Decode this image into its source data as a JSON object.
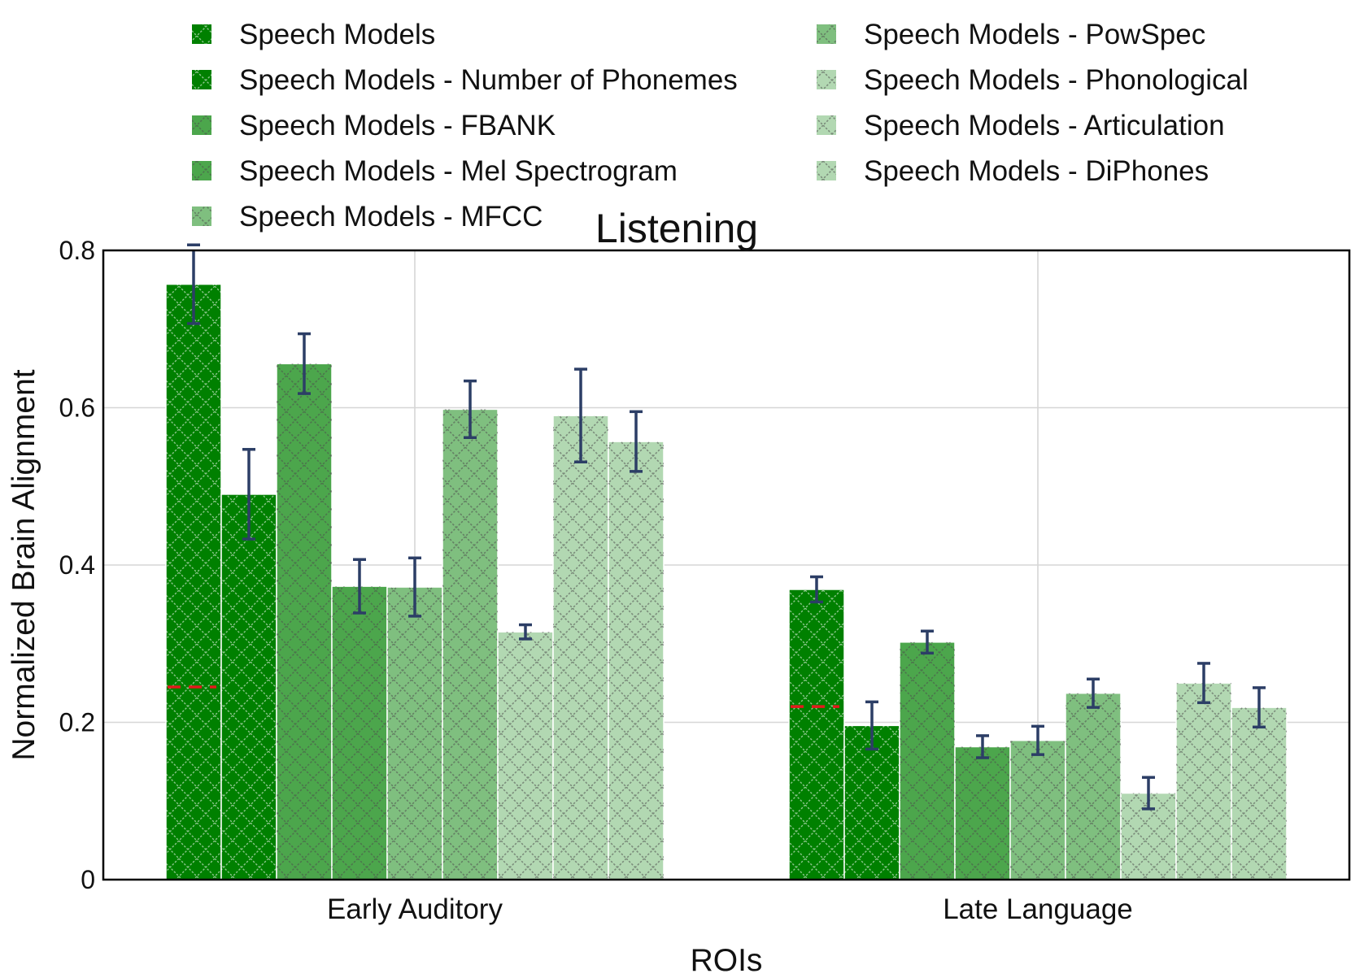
{
  "chart_data": {
    "type": "bar",
    "title": "Listening",
    "xlabel": "ROIs",
    "ylabel": "Normalized Brain Alignment",
    "ylim": [
      0,
      0.8
    ],
    "yticks": [
      0,
      0.2,
      0.4,
      0.6,
      0.8
    ],
    "ytick_labels": [
      "0",
      "0.2",
      "0.4",
      "0.6",
      "0.8"
    ],
    "grid": true,
    "legend_position": "top",
    "categories": [
      "Early Auditory",
      "Late Language"
    ],
    "series": [
      {
        "name": "Speech Models",
        "color": "#008000",
        "values": [
          0.757,
          0.369
        ],
        "errors": [
          0.05,
          0.016
        ]
      },
      {
        "name": "Speech Models - Number of Phonemes",
        "color": "#008000",
        "values": [
          0.49,
          0.196
        ],
        "errors": [
          0.057,
          0.03
        ]
      },
      {
        "name": "Speech Models - FBANK",
        "color": "#4ca64c",
        "values": [
          0.656,
          0.302
        ],
        "errors": [
          0.038,
          0.014
        ]
      },
      {
        "name": "Speech Models - Mel Spectrogram",
        "color": "#4ca64c",
        "values": [
          0.373,
          0.169
        ],
        "errors": [
          0.034,
          0.014
        ]
      },
      {
        "name": "Speech Models - MFCC",
        "color": "#7fbf7f",
        "values": [
          0.372,
          0.177
        ],
        "errors": [
          0.037,
          0.018
        ]
      },
      {
        "name": "Speech Models - PowSpec",
        "color": "#7fbf7f",
        "values": [
          0.598,
          0.237
        ],
        "errors": [
          0.036,
          0.018
        ]
      },
      {
        "name": "Speech Models - Phonological",
        "color": "#b2d8b2",
        "values": [
          0.315,
          0.11
        ],
        "errors": [
          0.009,
          0.02
        ]
      },
      {
        "name": "Speech Models - Articulation",
        "color": "#b2d8b2",
        "values": [
          0.59,
          0.25
        ],
        "errors": [
          0.059,
          0.025
        ]
      },
      {
        "name": "Speech Models - DiPhones",
        "color": "#b2d8b2",
        "values": [
          0.557,
          0.219
        ],
        "errors": [
          0.038,
          0.025
        ]
      }
    ],
    "baselines": [
      0.245,
      0.22
    ],
    "baseline_color": "#e31a1c",
    "errorbar_color": "#2c3e66"
  }
}
